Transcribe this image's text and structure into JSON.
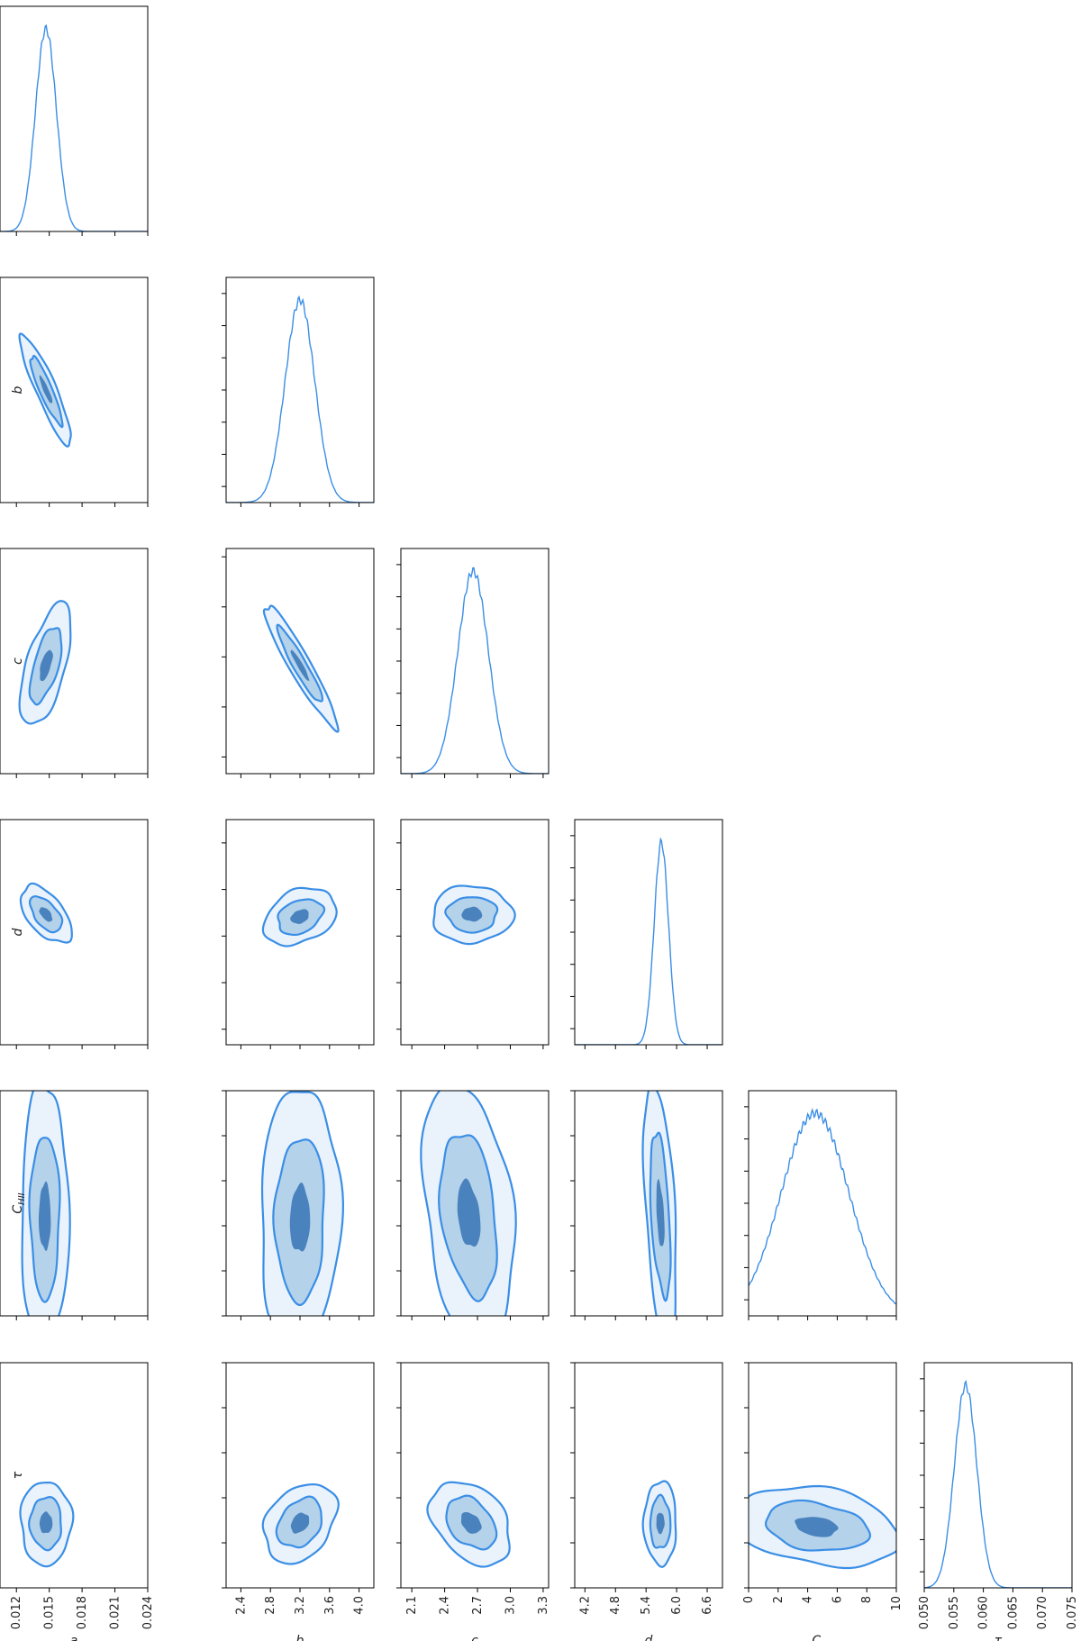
{
  "chart_data": {
    "type": "corner",
    "colors": {
      "line": "#3a8ee6",
      "fill1": "#eaf3fb",
      "fill2": "#b4d2ea",
      "fill3": "#4a82be"
    },
    "params": [
      {
        "key": "a",
        "label": "a",
        "range": [
          0.0105,
          0.024
        ],
        "ticks": [
          0.012,
          0.015,
          0.018,
          0.021,
          0.024
        ],
        "tick_labels": [
          "0.012",
          "0.015",
          "0.018",
          "0.021",
          "0.024"
        ]
      },
      {
        "key": "b",
        "label": "b",
        "range": [
          2.2,
          4.2
        ],
        "ticks": [
          2.4,
          2.8,
          3.2,
          3.6,
          4.0
        ],
        "tick_labels": [
          "2.4",
          "2.8",
          "3.2",
          "3.6",
          "4.0"
        ]
      },
      {
        "key": "c",
        "label": "c",
        "range": [
          2.0,
          3.35
        ],
        "ticks": [
          2.1,
          2.4,
          2.7,
          3.0,
          3.3
        ],
        "tick_labels": [
          "2.1",
          "2.4",
          "2.7",
          "3.0",
          "3.3"
        ]
      },
      {
        "key": "d",
        "label": "d",
        "range": [
          4.0,
          6.9
        ],
        "ticks": [
          4.2,
          4.8,
          5.4,
          6.0,
          6.6
        ],
        "tick_labels": [
          "4.2",
          "4.8",
          "5.4",
          "6.0",
          "6.6"
        ]
      },
      {
        "key": "CHII",
        "label_main": "C",
        "label_sub": "HII",
        "range": [
          0,
          10
        ],
        "ticks": [
          0,
          2,
          4,
          6,
          8,
          10
        ],
        "tick_labels": [
          "0",
          "2",
          "4",
          "6",
          "8",
          "10"
        ]
      },
      {
        "key": "tau",
        "label": "τ",
        "range": [
          0.05,
          0.075
        ],
        "ticks": [
          0.05,
          0.055,
          0.06,
          0.065,
          0.07,
          0.075
        ],
        "tick_labels": [
          "0.050",
          "0.055",
          "0.060",
          "0.065",
          "0.070",
          "0.075"
        ]
      }
    ],
    "marginals": [
      {
        "param": "a",
        "peak": 0.0147,
        "sigma": 0.00095
      },
      {
        "param": "b",
        "peak": 3.2,
        "sigma": 0.2
      },
      {
        "param": "c",
        "peak": 2.66,
        "sigma": 0.14
      },
      {
        "param": "d",
        "peak": 5.7,
        "sigma": 0.14
      },
      {
        "param": "CHII",
        "peak": 4.5,
        "sigma": 2.3
      },
      {
        "param": "tau",
        "peak": 0.057,
        "sigma": 0.0019
      }
    ],
    "contours": [
      {
        "x": "a",
        "y": "b",
        "cx": 0.0147,
        "cy": 3.2,
        "sx": 0.00095,
        "sy": 0.2,
        "rho": -0.9
      },
      {
        "x": "a",
        "y": "c",
        "cx": 0.0147,
        "cy": 2.65,
        "sx": 0.00095,
        "sy": 0.15,
        "rho": 0.6
      },
      {
        "x": "b",
        "y": "c",
        "cx": 3.2,
        "cy": 2.65,
        "sx": 0.2,
        "sy": 0.15,
        "rho": -0.94
      },
      {
        "x": "a",
        "y": "d",
        "cx": 0.0147,
        "cy": 5.68,
        "sx": 0.00095,
        "sy": 0.15,
        "rho": -0.55
      },
      {
        "x": "b",
        "y": "d",
        "cx": 3.2,
        "cy": 5.65,
        "sx": 0.2,
        "sy": 0.15,
        "rho": 0.3
      },
      {
        "x": "c",
        "y": "d",
        "cx": 2.65,
        "cy": 5.68,
        "sx": 0.15,
        "sy": 0.15,
        "rho": 0.0
      },
      {
        "x": "a",
        "y": "CHII",
        "cx": 0.0146,
        "cy": 4.4,
        "sx": 0.00088,
        "sy": 2.4,
        "rho": 0.0
      },
      {
        "x": "b",
        "y": "CHII",
        "cx": 3.2,
        "cy": 4.3,
        "sx": 0.22,
        "sy": 2.4,
        "rho": 0.05
      },
      {
        "x": "c",
        "y": "CHII",
        "cx": 2.62,
        "cy": 4.5,
        "sx": 0.17,
        "sy": 2.4,
        "rho": -0.3
      },
      {
        "x": "d",
        "y": "CHII",
        "cx": 5.68,
        "cy": 4.5,
        "sx": 0.13,
        "sy": 2.4,
        "rho": -0.45
      },
      {
        "x": "a",
        "y": "tau",
        "cx": 0.0147,
        "cy": 0.0572,
        "sx": 0.00095,
        "sy": 0.0019,
        "rho": 0.0
      },
      {
        "x": "b",
        "y": "tau",
        "cx": 3.2,
        "cy": 0.0572,
        "sx": 0.2,
        "sy": 0.0018,
        "rho": 0.3
      },
      {
        "x": "c",
        "y": "tau",
        "cx": 2.64,
        "cy": 0.0572,
        "sx": 0.15,
        "sy": 0.0019,
        "rho": -0.35
      },
      {
        "x": "d",
        "y": "tau",
        "cx": 5.68,
        "cy": 0.0572,
        "sx": 0.13,
        "sy": 0.0019,
        "rho": 0.0
      },
      {
        "x": "CHII",
        "y": "tau",
        "cx": 4.6,
        "cy": 0.0568,
        "sx": 2.3,
        "sy": 0.0018,
        "rho": -0.25
      }
    ]
  }
}
